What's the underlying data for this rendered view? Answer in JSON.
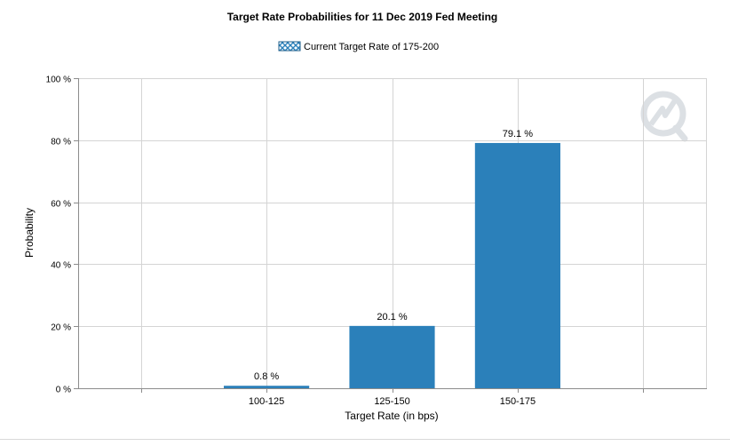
{
  "chart_data": {
    "type": "bar",
    "title": "Target Rate Probabilities for 11 Dec 2019 Fed Meeting",
    "legend": {
      "label": "Current Target Rate of 175-200",
      "placement": "top-center"
    },
    "xlabel": "Target Rate (in bps)",
    "ylabel": "Probability",
    "x_slots": [
      "",
      "100-125",
      "125-150",
      "150-175",
      ""
    ],
    "categories": [
      "100-125",
      "125-150",
      "150-175"
    ],
    "values": [
      0.8,
      20.1,
      79.1
    ],
    "data_labels": [
      "0.8 %",
      "20.1 %",
      "79.1 %"
    ],
    "ylim": [
      0,
      100
    ],
    "yticks": [
      0,
      20,
      40,
      60,
      80,
      100
    ],
    "ytick_labels": [
      "0 %",
      "20 %",
      "40 %",
      "60 %",
      "80 %",
      "100 %"
    ],
    "grid": true,
    "colors": {
      "bar": "#2b80ba",
      "grid": "#d4d4d4",
      "axis": "#8c8c8c",
      "legend_swatch": "#2b80ba",
      "watermark": "#d9dde2"
    }
  }
}
